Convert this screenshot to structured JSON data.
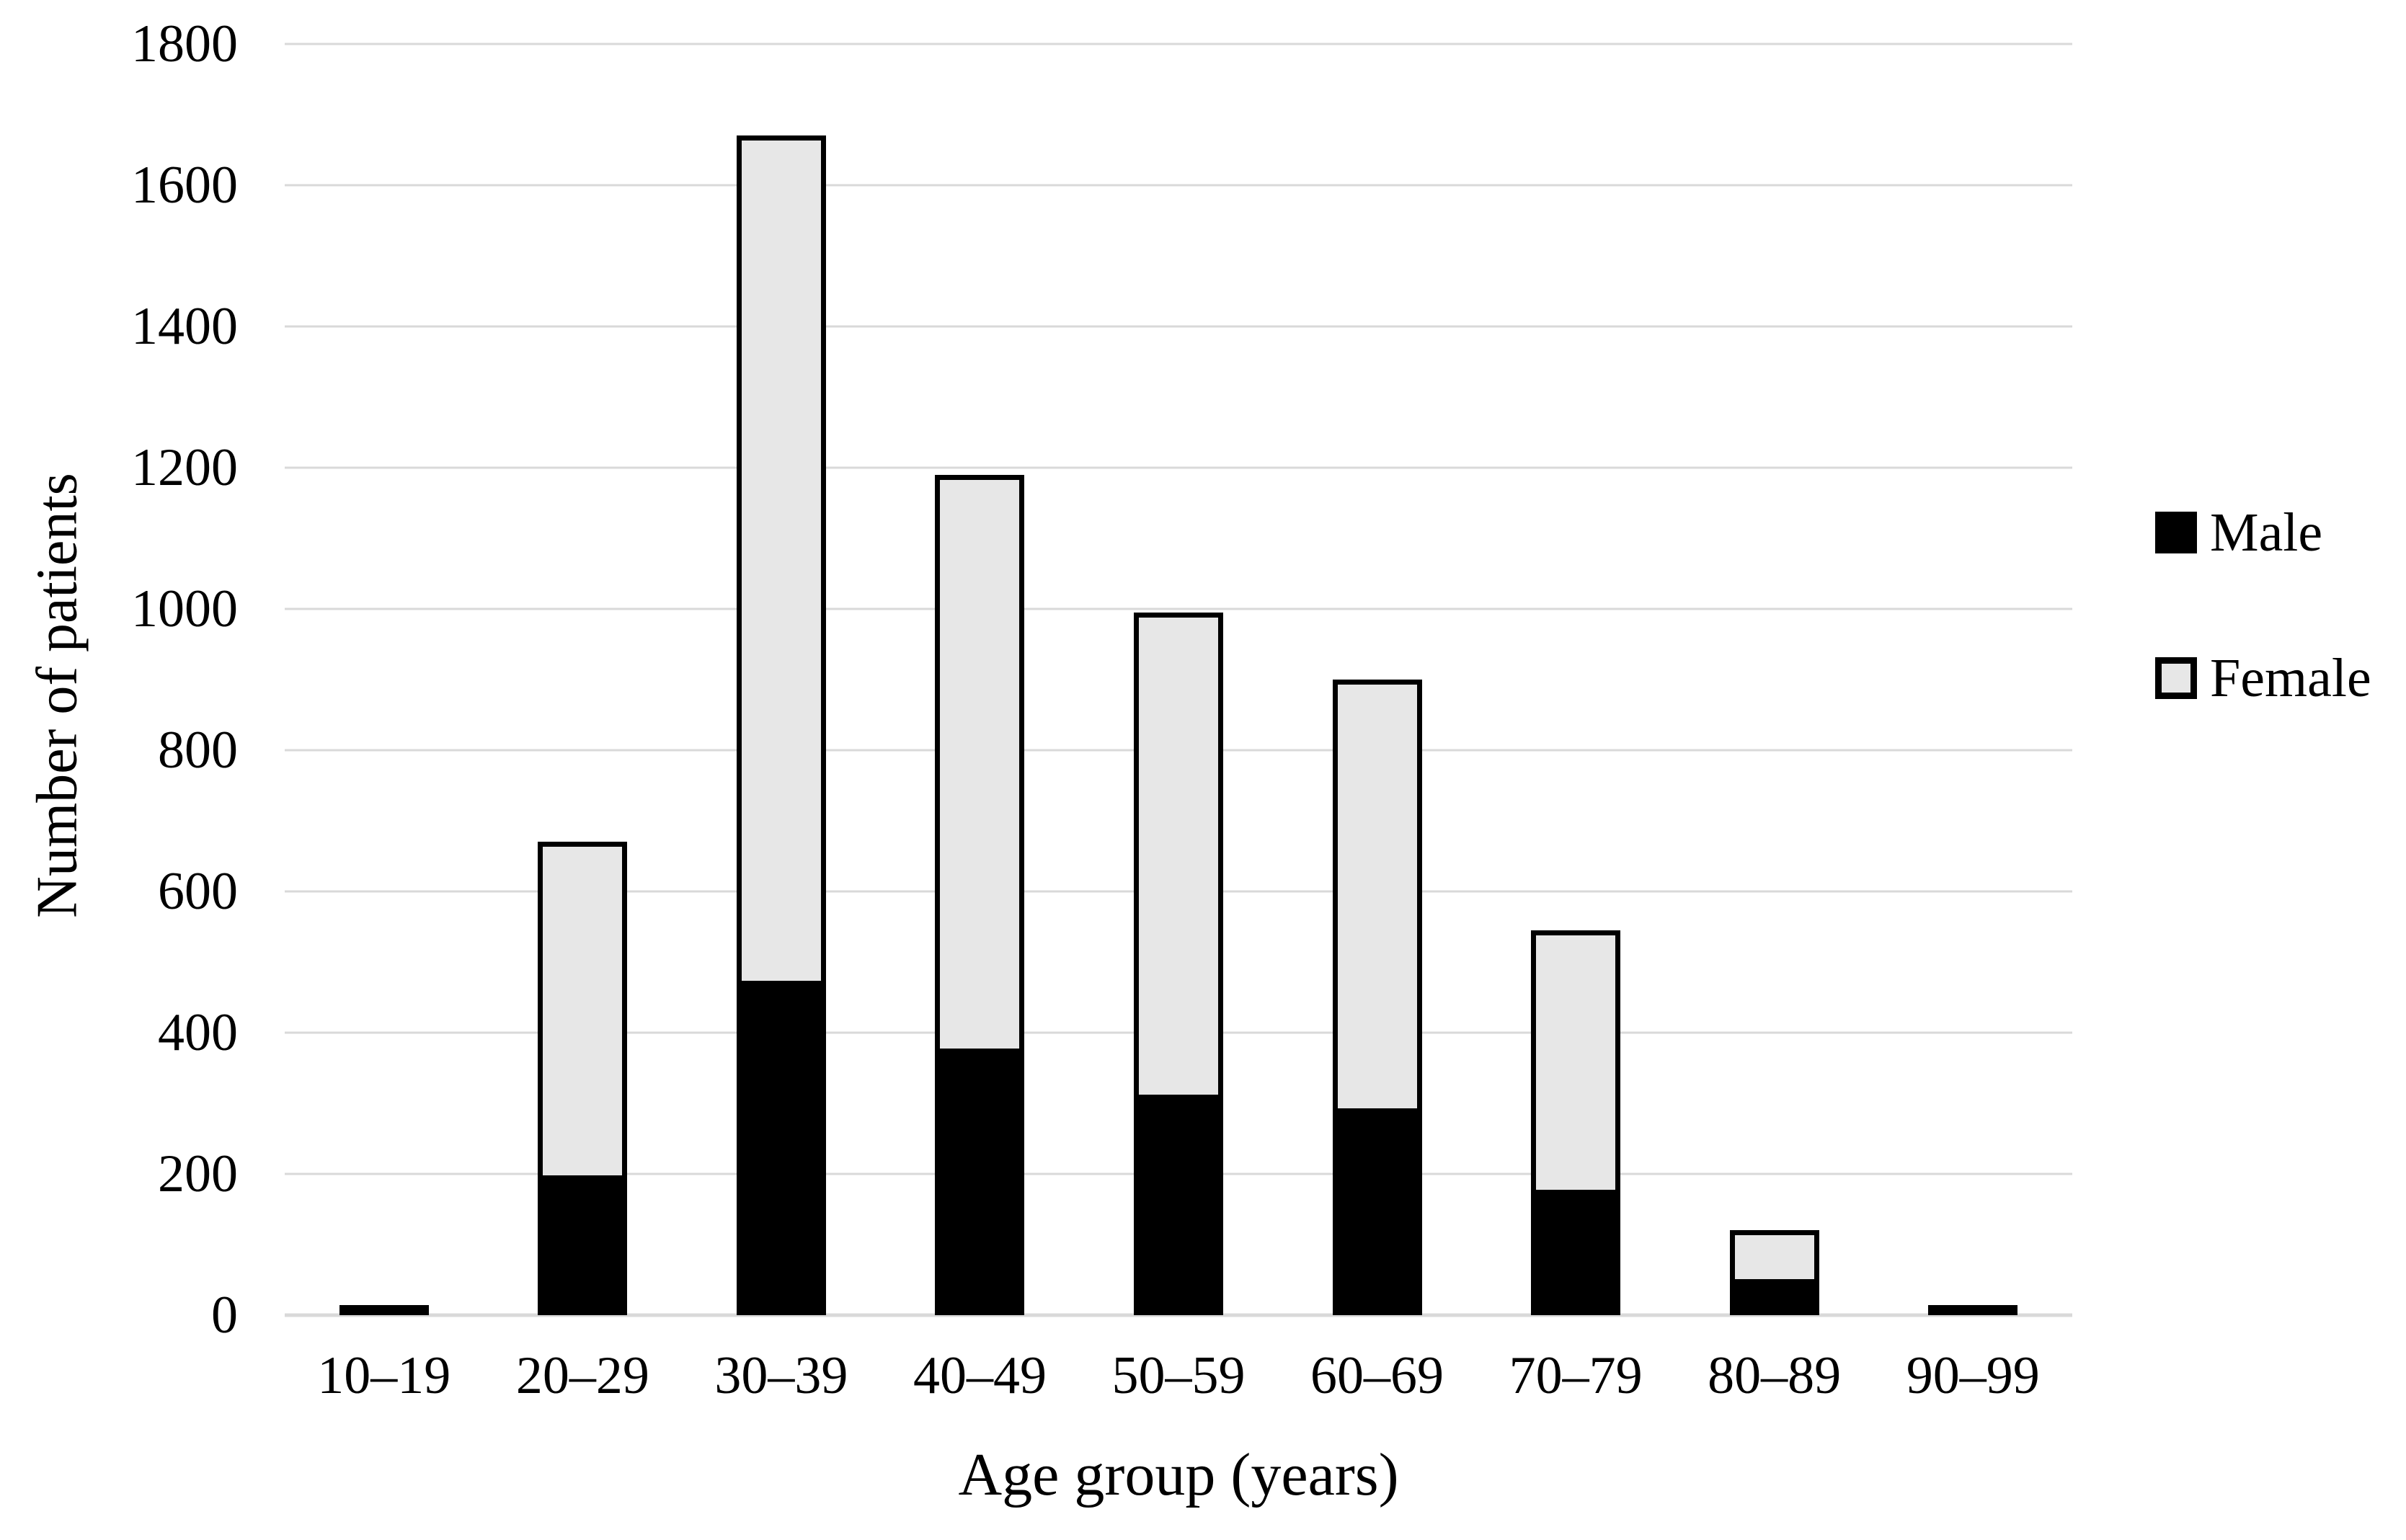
{
  "chart_data": {
    "type": "bar",
    "stacked": true,
    "title": "",
    "xlabel": "Age group (years)",
    "ylabel": "Number of patients",
    "categories": [
      "10–19",
      "20–29",
      "30–39",
      "40–49",
      "50–59",
      "60–69",
      "70–79",
      "80–89",
      "90–99"
    ],
    "series": [
      {
        "name": "Male",
        "color": "#000000",
        "values": [
          10,
          195,
          470,
          375,
          310,
          290,
          175,
          50,
          10
        ]
      },
      {
        "name": "Female",
        "color": "#e7e7e7",
        "values": [
          0,
          475,
          1200,
          815,
          685,
          610,
          370,
          70,
          0
        ]
      }
    ],
    "ylim": [
      0,
      1800
    ],
    "ytick_step": 200,
    "yticks": [
      "0",
      "200",
      "400",
      "600",
      "800",
      "1000",
      "1200",
      "1400",
      "1600",
      "1800"
    ],
    "grid": true,
    "gridline_color": "#d9d9d9",
    "bar_border_color": "#000000",
    "legend_position": "right"
  }
}
